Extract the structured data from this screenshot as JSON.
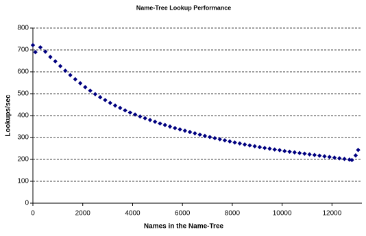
{
  "chart_data": {
    "type": "scatter",
    "title": "Name-Tree Lookup Performance",
    "x_label": "Names in the Name-Tree",
    "y_label": "Lookups/sec",
    "series": [
      {
        "name": "Lookups/sec",
        "color": "#000080",
        "x": [
          0,
          100,
          300,
          500,
          700,
          900,
          1100,
          1300,
          1500,
          1700,
          1900,
          2100,
          2300,
          2500,
          2700,
          2900,
          3100,
          3300,
          3500,
          3700,
          3900,
          4100,
          4300,
          4500,
          4700,
          4900,
          5100,
          5300,
          5500,
          5700,
          5900,
          6100,
          6300,
          6500,
          6700,
          6900,
          7100,
          7300,
          7500,
          7700,
          7900,
          8100,
          8300,
          8500,
          8700,
          8900,
          9100,
          9300,
          9500,
          9700,
          9900,
          10100,
          10300,
          10500,
          10700,
          10900,
          11100,
          11300,
          11500,
          11700,
          11900,
          12100,
          12300,
          12500,
          12700,
          12800,
          12950,
          13050
        ],
        "values": [
          722,
          690,
          712,
          692,
          668,
          648,
          626,
          605,
          585,
          566,
          548,
          530,
          514,
          498,
          484,
          471,
          458,
          446,
          435,
          424,
          414,
          405,
          396,
          388,
          380,
          372,
          364,
          357,
          350,
          343,
          337,
          331,
          325,
          319,
          313,
          307,
          302,
          297,
          292,
          287,
          282,
          277,
          273,
          268,
          264,
          260,
          256,
          252,
          249,
          245,
          242,
          238,
          235,
          232,
          229,
          226,
          223,
          220,
          217,
          214,
          211,
          208,
          205,
          202,
          199,
          197,
          218,
          243
        ]
      }
    ],
    "xlim": [
      0,
      13200
    ],
    "xticks": [
      0,
      2000,
      4000,
      6000,
      8000,
      10000,
      12000
    ],
    "ylim": [
      0,
      800
    ],
    "yticks": [
      0,
      100,
      200,
      300,
      400,
      500,
      600,
      700,
      800
    ],
    "grid": true
  }
}
